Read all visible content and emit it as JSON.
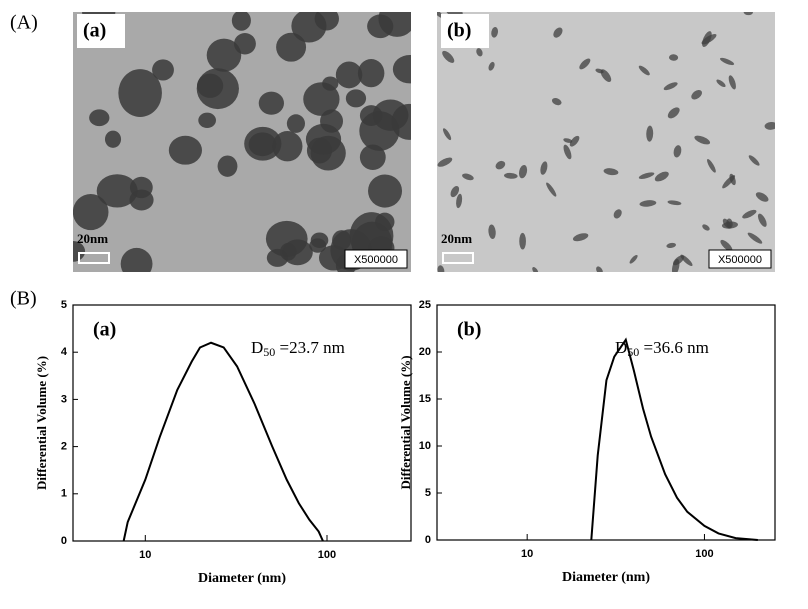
{
  "figure_labels": [
    "(A)",
    "(B)"
  ],
  "images": [
    {
      "label": "(a)",
      "scale": "20nm",
      "magnification": "X500000"
    },
    {
      "label": "(b)",
      "scale": "20nm",
      "magnification": "X500000"
    }
  ],
  "chart_data": [
    {
      "type": "line",
      "label": "(a)",
      "annotation": {
        "main": "D",
        "sub": "50",
        "rest": " =23.7 nm"
      },
      "xlabel": "Diameter (nm)",
      "ylabel": "Differential Volume (%)",
      "xscale": "log",
      "color": "#000000",
      "x": [
        7.6,
        8,
        10,
        12,
        15,
        18,
        20,
        23,
        27,
        32,
        40,
        50,
        60,
        70,
        80,
        90,
        95
      ],
      "values": [
        0,
        0.4,
        1.3,
        2.2,
        3.2,
        3.8,
        4.1,
        4.2,
        4.1,
        3.7,
        2.9,
        2.0,
        1.3,
        0.8,
        0.45,
        0.2,
        0
      ],
      "xlim": [
        4,
        290
      ],
      "xticks": [
        10,
        100
      ],
      "ylim": [
        0,
        5
      ],
      "yticks": [
        0,
        1,
        2,
        3,
        4,
        5
      ]
    },
    {
      "type": "line",
      "label": "(b)",
      "annotation": {
        "main": "D",
        "sub": "50",
        "rest": " =36.6 nm"
      },
      "xlabel": "Diameter (nm)",
      "ylabel": "Differential Volume (%)",
      "xscale": "log",
      "color": "#000000",
      "x": [
        23,
        25,
        28,
        31,
        36,
        40,
        45,
        50,
        60,
        70,
        80,
        100,
        120,
        150,
        200
      ],
      "values": [
        0,
        9,
        17,
        19.5,
        21.3,
        18,
        14,
        11,
        7,
        4.5,
        3,
        1.5,
        0.7,
        0.2,
        0
      ],
      "xlim": [
        3.1,
        250
      ],
      "xticks": [
        10,
        100
      ],
      "ylim": [
        0,
        25
      ],
      "yticks": [
        0,
        5,
        10,
        15,
        20,
        25
      ]
    }
  ]
}
